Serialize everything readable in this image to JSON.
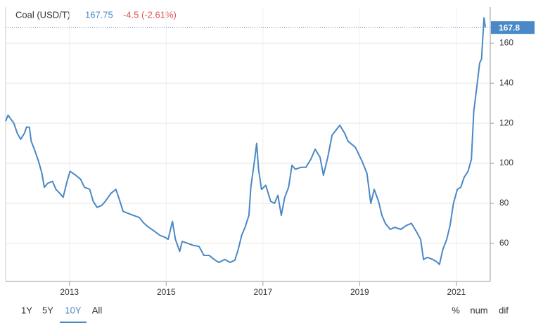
{
  "chart_data": {
    "type": "line",
    "title": "Coal (USD/T)",
    "last_value": 167.75,
    "change": "-4.5 (-2.61%)",
    "price_tag": "167.8",
    "color": "#4a88c7",
    "x": [
      2011.68,
      2011.73,
      2011.85,
      2011.92,
      2011.99,
      2012.07,
      2012.11,
      2012.17,
      2012.21,
      2012.29,
      2012.36,
      2012.43,
      2012.48,
      2012.55,
      2012.65,
      2012.72,
      2012.8,
      2012.87,
      2012.94,
      2013.01,
      2013.13,
      2013.23,
      2013.31,
      2013.42,
      2013.49,
      2013.57,
      2013.67,
      2013.74,
      2013.86,
      2013.96,
      2014.03,
      2014.11,
      2014.21,
      2014.32,
      2014.44,
      2014.54,
      2014.64,
      2014.76,
      2014.87,
      2014.98,
      2015.04,
      2015.13,
      2015.19,
      2015.28,
      2015.33,
      2015.45,
      2015.56,
      2015.68,
      2015.78,
      2015.89,
      2015.99,
      2016.09,
      2016.21,
      2016.32,
      2016.42,
      2016.49,
      2016.56,
      2016.63,
      2016.71,
      2016.75,
      2016.83,
      2016.87,
      2016.91,
      2016.97,
      2017.06,
      2017.16,
      2017.24,
      2017.31,
      2017.38,
      2017.45,
      2017.53,
      2017.6,
      2017.67,
      2017.79,
      2017.89,
      2017.99,
      2018.08,
      2018.18,
      2018.25,
      2018.34,
      2018.43,
      2018.51,
      2018.59,
      2018.69,
      2018.76,
      2018.91,
      2019.05,
      2019.15,
      2019.23,
      2019.3,
      2019.39,
      2019.46,
      2019.53,
      2019.63,
      2019.73,
      2019.85,
      2019.97,
      2020.07,
      2020.17,
      2020.26,
      2020.32,
      2020.4,
      2020.51,
      2020.58,
      2020.65,
      2020.72,
      2020.8,
      2020.87,
      2020.94,
      2021.02,
      2021.09,
      2021.16,
      2021.24,
      2021.31,
      2021.36,
      2021.42,
      2021.48,
      2021.52,
      2021.57,
      2021.6
    ],
    "values": [
      121,
      124,
      120,
      115,
      112,
      115,
      118,
      118,
      111,
      106,
      101,
      95,
      88,
      90,
      91,
      87,
      85,
      83,
      90,
      96,
      94,
      92,
      88,
      87,
      81,
      78,
      79,
      81,
      85,
      87,
      82,
      76,
      75,
      74,
      73,
      70,
      68,
      66,
      64,
      63,
      62,
      71,
      62,
      56,
      61,
      60,
      59,
      58.5,
      54,
      54,
      52,
      50.5,
      52,
      50.5,
      51.6,
      57,
      64,
      68,
      74,
      88,
      102,
      110,
      97,
      87,
      89,
      81,
      80,
      84,
      74,
      83,
      88,
      99,
      97,
      98,
      98,
      102,
      107,
      103,
      94,
      103,
      114,
      116.5,
      119,
      115,
      111,
      108,
      101,
      95,
      80,
      87,
      81,
      74,
      70,
      67,
      68,
      67,
      69,
      70,
      66,
      62,
      52,
      53,
      52,
      51,
      49.5,
      57,
      62,
      69,
      80,
      87,
      88,
      93,
      96,
      102,
      126,
      137.5,
      150,
      152,
      172.6,
      167.75
    ],
    "xlim": [
      2011.68,
      2021.7
    ],
    "ylim": [
      41,
      178
    ],
    "xticks": [
      2013,
      2015,
      2017,
      2019,
      2021
    ],
    "yticks": [
      60,
      80,
      100,
      120,
      140,
      160
    ],
    "grid": true,
    "ranges": [
      "1Y",
      "5Y",
      "10Y",
      "All"
    ],
    "active_range": 2,
    "modes": [
      "%",
      "num",
      "dif"
    ]
  }
}
